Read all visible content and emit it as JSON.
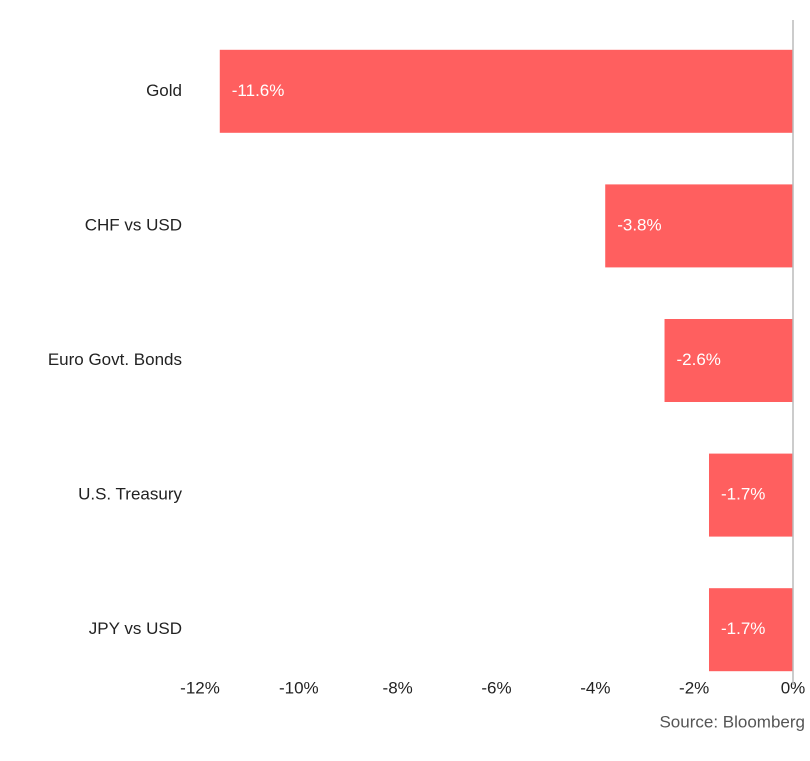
{
  "chart_data": {
    "type": "barh",
    "categories": [
      "Gold",
      "CHF vs USD",
      "Euro Govt. Bonds",
      "U.S. Treasury",
      "JPY vs USD"
    ],
    "values": [
      -11.6,
      -3.8,
      -2.6,
      -1.7,
      -1.7
    ],
    "value_labels": [
      "-11.6%",
      "-3.8%",
      "-2.6%",
      "-1.7%",
      "-1.7%"
    ],
    "color": "#ff5f5f",
    "xlim": [
      -12,
      0
    ],
    "xticks": [
      {
        "value": -12,
        "label": "-12%"
      },
      {
        "value": -10,
        "label": "-10%"
      },
      {
        "value": -8,
        "label": "-8%"
      },
      {
        "value": -6,
        "label": "-6%"
      },
      {
        "value": -4,
        "label": "-4%"
      },
      {
        "value": -2,
        "label": "-2%"
      },
      {
        "value": 0,
        "label": "0%"
      }
    ],
    "source": "Source: Bloomberg"
  }
}
